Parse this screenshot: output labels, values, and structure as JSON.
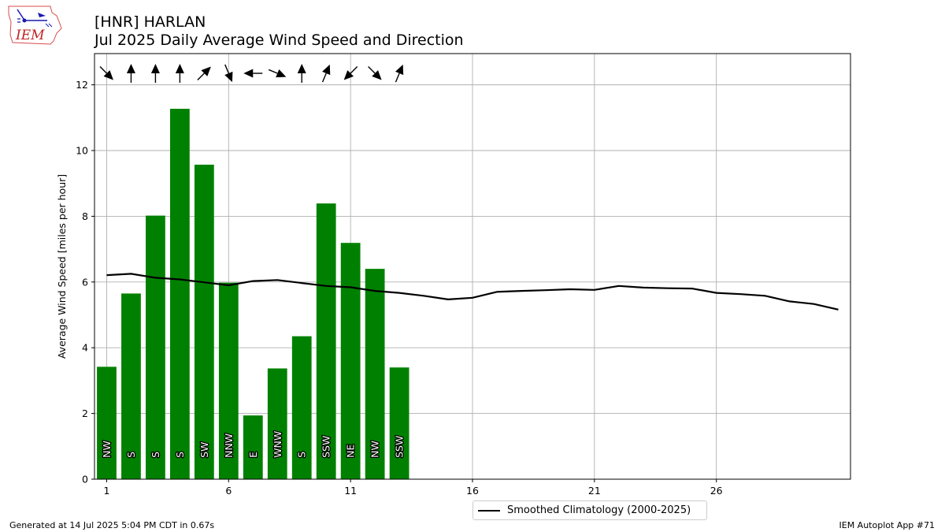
{
  "header": {
    "station_line": "[HNR] HARLAN",
    "title_line": "Jul 2025 Daily Average Wind Speed and Direction"
  },
  "logo": {
    "text": "IEM"
  },
  "footer": {
    "generated": "Generated at 14 Jul 2025 5:04 PM CDT in 0.67s",
    "app": "IEM Autoplot App #71"
  },
  "colors": {
    "bar": "#008000",
    "climatology": "#000000",
    "grid": "#b0b0b0"
  },
  "chart_data": {
    "type": "bar",
    "ylabel": "Average Wind Speed [miles per hour]",
    "xlabel": "",
    "xlim": [
      0.5,
      31.5
    ],
    "ylim": [
      0,
      12.95
    ],
    "x_ticks": [
      1,
      6,
      11,
      16,
      21,
      26
    ],
    "y_ticks": [
      0,
      2,
      4,
      6,
      8,
      10,
      12
    ],
    "grid": true,
    "legend_position": "bottom-center",
    "days": [
      1,
      2,
      3,
      4,
      5,
      6,
      7,
      8,
      9,
      10,
      11,
      12,
      13
    ],
    "values": [
      3.42,
      5.65,
      8.02,
      11.27,
      9.57,
      5.98,
      1.94,
      3.37,
      4.35,
      8.39,
      7.19,
      6.4,
      3.4
    ],
    "directions": [
      "NW",
      "S",
      "S",
      "S",
      "SW",
      "NNW",
      "E",
      "WNW",
      "S",
      "SSW",
      "NE",
      "NW",
      "SSW"
    ],
    "direction_degrees": [
      315,
      180,
      180,
      180,
      225,
      337.5,
      90,
      292.5,
      180,
      202.5,
      45,
      315,
      202.5
    ],
    "series": [
      {
        "name": "Smoothed Climatology (2000-2025)",
        "type": "line",
        "x": [
          1,
          2,
          3,
          4,
          5,
          6,
          7,
          8,
          9,
          10,
          11,
          12,
          13,
          14,
          15,
          16,
          17,
          18,
          19,
          20,
          21,
          22,
          23,
          24,
          25,
          26,
          27,
          28,
          29,
          30,
          31
        ],
        "values": [
          6.21,
          6.25,
          6.13,
          6.08,
          5.99,
          5.9,
          6.03,
          6.06,
          5.97,
          5.88,
          5.84,
          5.73,
          5.67,
          5.58,
          5.47,
          5.52,
          5.7,
          5.73,
          5.75,
          5.78,
          5.76,
          5.88,
          5.83,
          5.81,
          5.8,
          5.67,
          5.63,
          5.58,
          5.41,
          5.33,
          5.16
        ]
      }
    ]
  }
}
